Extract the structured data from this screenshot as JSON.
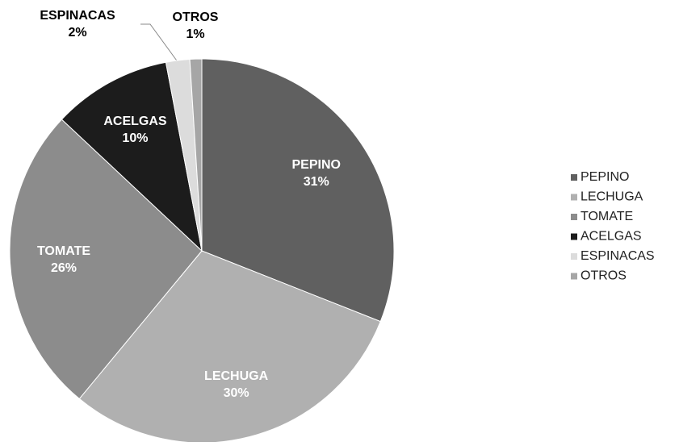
{
  "chart_data": {
    "type": "pie",
    "categories": [
      "PEPINO",
      "LECHUGA",
      "TOMATE",
      "ACELGAS",
      "ESPINACAS",
      "OTROS"
    ],
    "values": [
      31,
      30,
      26,
      10,
      2,
      1
    ],
    "value_labels": [
      "31%",
      "30%",
      "26%",
      "10%",
      "2%",
      "1%"
    ],
    "colors": [
      "#606060",
      "#b0b0b0",
      "#8c8c8c",
      "#1c1c1c",
      "#dcdcdc",
      "#a6a6a6"
    ],
    "legend": "right"
  }
}
